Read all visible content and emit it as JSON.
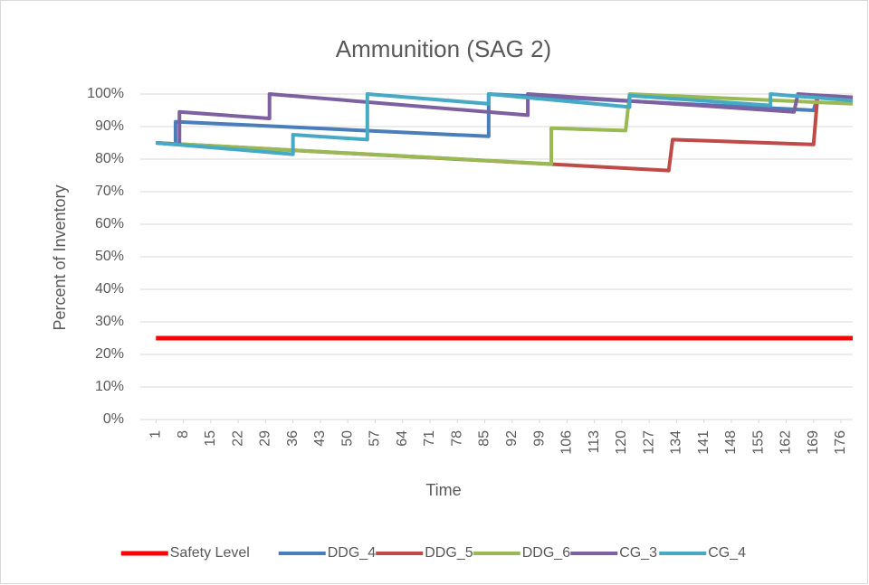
{
  "chart_data": {
    "type": "line",
    "title": "Ammunition (SAG 2)",
    "x_label": "Time",
    "y_label": "Percent of Inventory",
    "xlim": [
      -3,
      179
    ],
    "xticks": [
      1,
      8,
      15,
      22,
      29,
      36,
      43,
      50,
      57,
      64,
      71,
      78,
      85,
      92,
      99,
      106,
      113,
      120,
      127,
      134,
      141,
      148,
      155,
      162,
      169,
      176
    ],
    "ylim": [
      0,
      100
    ],
    "yticks": [
      {
        "value": 0,
        "label": "0%"
      },
      {
        "value": 10,
        "label": "10%"
      },
      {
        "value": 20,
        "label": "20%"
      },
      {
        "value": 30,
        "label": "30%"
      },
      {
        "value": 40,
        "label": "40%"
      },
      {
        "value": 50,
        "label": "50%"
      },
      {
        "value": 60,
        "label": "60%"
      },
      {
        "value": 70,
        "label": "70%"
      },
      {
        "value": 80,
        "label": "80%"
      },
      {
        "value": 90,
        "label": "90%"
      },
      {
        "value": 100,
        "label": "100%"
      }
    ],
    "grid": true,
    "legend": "bottom",
    "series": [
      {
        "name": "Safety Level",
        "color": "#ff0000",
        "x": [
          1,
          179
        ],
        "values": [
          25,
          25
        ]
      },
      {
        "name": "DDG_4",
        "color": "#4a7ebb",
        "x": [
          1,
          6,
          6,
          86,
          86,
          169,
          170,
          179
        ],
        "values": [
          85,
          84.5,
          91.5,
          87,
          100,
          95,
          99,
          98
        ]
      },
      {
        "name": "DDG_5",
        "color": "#be4b48",
        "x": [
          1,
          132,
          133,
          169,
          170,
          179
        ],
        "values": [
          85,
          76.5,
          86,
          84.5,
          99,
          99
        ]
      },
      {
        "name": "DDG_6",
        "color": "#98b954",
        "x": [
          1,
          102,
          102,
          121,
          122,
          179
        ],
        "values": [
          85,
          78.5,
          89.5,
          88.8,
          100,
          97
        ]
      },
      {
        "name": "CG_3",
        "color": "#7d60a0",
        "x": [
          1,
          7,
          7,
          30,
          30,
          96,
          96,
          164,
          165,
          179
        ],
        "values": [
          85,
          84.5,
          94.5,
          92.5,
          100,
          93.5,
          100,
          94.5,
          100,
          99
        ]
      },
      {
        "name": "CG_4",
        "color": "#46aac5",
        "x": [
          1,
          36,
          36,
          55,
          55,
          86,
          86,
          122,
          122,
          158,
          158,
          179
        ],
        "values": [
          85,
          81.5,
          87.5,
          86,
          100,
          97,
          100,
          96,
          99.5,
          96.5,
          100,
          98
        ]
      }
    ]
  }
}
